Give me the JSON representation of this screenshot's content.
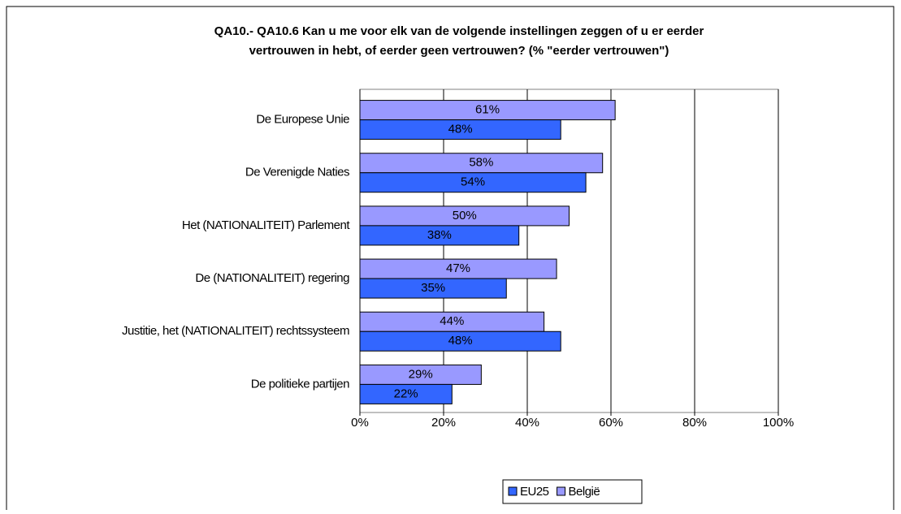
{
  "chart_data": {
    "type": "hbar",
    "title": "QA10.- QA10.6 Kan u me voor elk van de volgende instellingen zeggen of u er eerder vertrouwen in hebt, of eerder geen vertrouwen? (% \"eerder vertrouwen\")",
    "categories": [
      "De Europese Unie",
      "De Verenigde Naties",
      "Het (NATIONALITEIT) Parlement",
      "De (NATIONALITEIT) regering",
      "Justitie, het (NATIONALITEIT) rechtssysteem",
      "De politieke partijen"
    ],
    "series": [
      {
        "name": "EU25",
        "color": "#3366ff",
        "values": [
          48,
          54,
          38,
          35,
          48,
          22
        ],
        "value_labels": [
          "48%",
          "54%",
          "38%",
          "35%",
          "48%",
          "22%"
        ]
      },
      {
        "name": "België",
        "color": "#9999ff",
        "values": [
          61,
          58,
          50,
          47,
          44,
          29
        ],
        "value_labels": [
          "61%",
          "58%",
          "50%",
          "47%",
          "44%",
          "29%"
        ]
      }
    ],
    "xlim": [
      0,
      100
    ],
    "xticks": [
      {
        "value": 0,
        "label": "0%"
      },
      {
        "value": 20,
        "label": "20%"
      },
      {
        "value": 40,
        "label": "40%"
      },
      {
        "value": 60,
        "label": "60%"
      },
      {
        "value": 80,
        "label": "80%"
      },
      {
        "value": 100,
        "label": "100%"
      }
    ],
    "grid": true,
    "legend": "bottom"
  }
}
